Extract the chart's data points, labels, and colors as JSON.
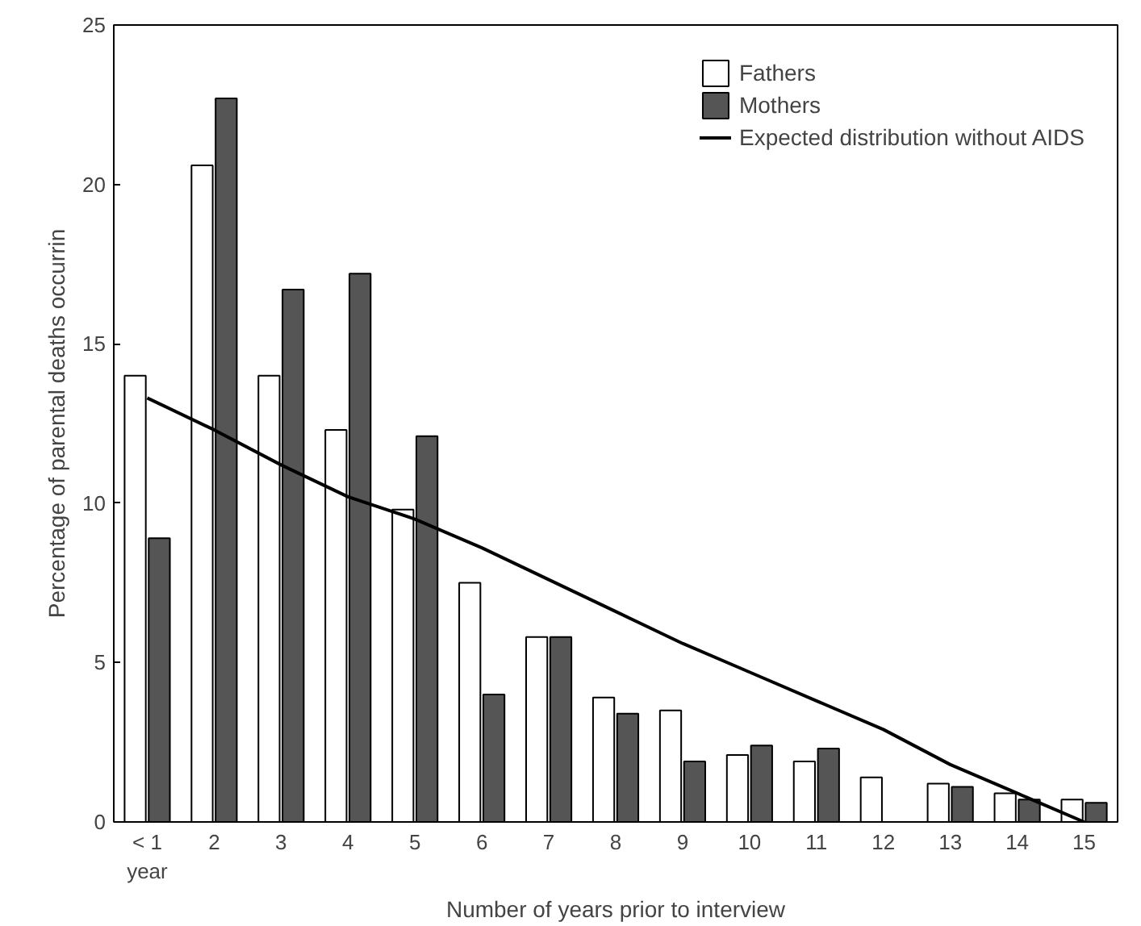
{
  "chart_data": {
    "type": "bar",
    "xlabel": "Number of years prior to interview",
    "ylabel": "Percentage of parental deaths occurrin",
    "categories": [
      "< 1\nyear",
      "2",
      "3",
      "4",
      "5",
      "6",
      "7",
      "8",
      "9",
      "10",
      "11",
      "12",
      "13",
      "14",
      "15"
    ],
    "series": [
      {
        "name": "Fathers",
        "color": "#ffffff",
        "values": [
          14,
          20.6,
          14,
          12.3,
          9.8,
          7.5,
          5.8,
          3.9,
          3.5,
          2.1,
          1.9,
          1.4,
          1.2,
          0.9,
          0.7
        ]
      },
      {
        "name": "Mothers",
        "color": "#555555",
        "values": [
          8.9,
          22.7,
          16.7,
          17.2,
          12.1,
          4.0,
          5.8,
          3.4,
          1.9,
          2.4,
          2.3,
          null,
          1.1,
          0.7,
          0.6
        ]
      },
      {
        "name": "Expected distribution without AIDS",
        "type": "line",
        "color": "#000000",
        "values": [
          13.3,
          12.3,
          11.2,
          10.2,
          9.5,
          8.6,
          7.6,
          6.6,
          5.6,
          4.7,
          3.8,
          2.9,
          1.8,
          0.9,
          0
        ]
      }
    ],
    "ylim": [
      0,
      25
    ],
    "yticks": [
      0,
      5,
      10,
      15,
      20,
      25
    ],
    "grid": false,
    "legend": "top right"
  }
}
